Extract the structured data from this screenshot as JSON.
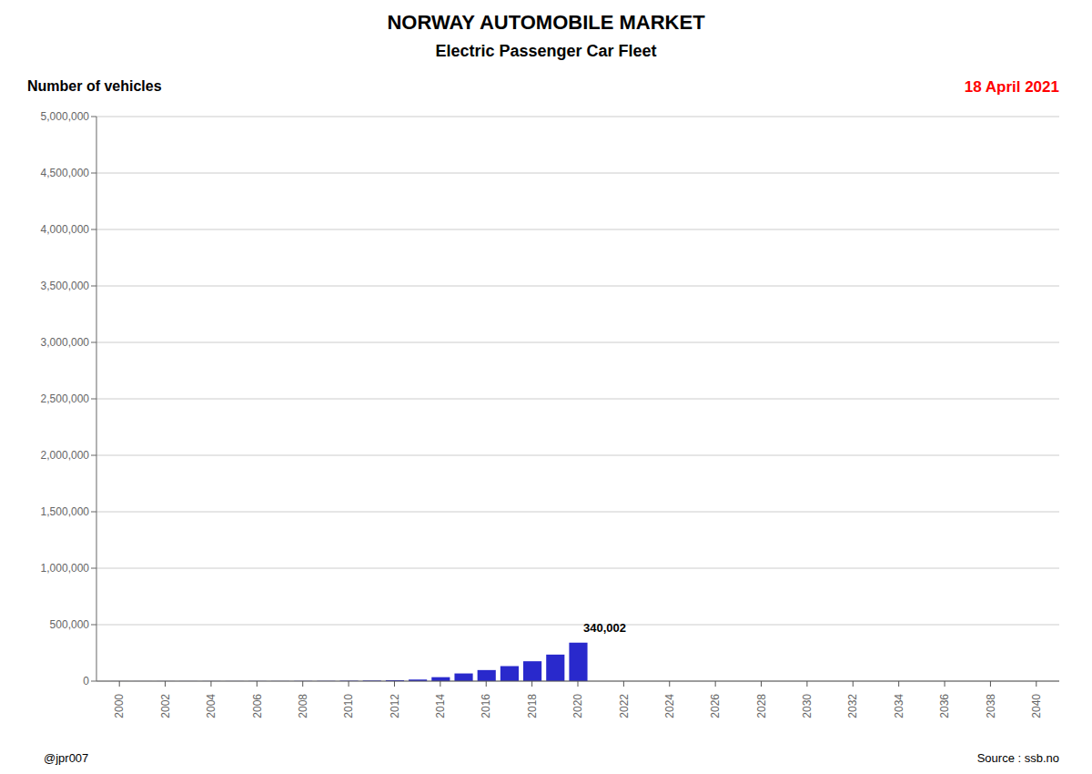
{
  "chart_data": {
    "type": "bar",
    "title": "NORWAY AUTOMOBILE MARKET",
    "subtitle": "Electric Passenger Car Fleet",
    "ylabel": "Number of vehicles",
    "date_label": {
      "text": "18 April 2021",
      "color": "red"
    },
    "footer_left": "@jpr007",
    "footer_right": "Source : ssb.no",
    "color": "#2929cc",
    "grid": true,
    "x": [
      2000,
      2001,
      2002,
      2003,
      2004,
      2005,
      2006,
      2007,
      2008,
      2009,
      2010,
      2011,
      2012,
      2013,
      2014,
      2015,
      2016,
      2017,
      2018,
      2019,
      2020
    ],
    "values": [
      300,
      400,
      500,
      600,
      700,
      800,
      900,
      1000,
      1500,
      2000,
      3500,
      5000,
      8000,
      14000,
      35000,
      68000,
      98000,
      133000,
      176000,
      235000,
      340002
    ],
    "xlim": [
      1999,
      2041
    ],
    "xticks": [
      2000,
      2002,
      2004,
      2006,
      2008,
      2010,
      2012,
      2014,
      2016,
      2018,
      2020,
      2022,
      2024,
      2026,
      2028,
      2030,
      2032,
      2034,
      2036,
      2038,
      2040
    ],
    "ylim": [
      0,
      5000000
    ],
    "yticks": [
      0,
      {
        "value": 500000,
        "label": "500,000"
      },
      {
        "value": 1000000,
        "label": "1,000,000"
      },
      {
        "value": 1500000,
        "label": "1,500,000"
      },
      {
        "value": 2000000,
        "label": "2,000,000"
      },
      {
        "value": 2500000,
        "label": "2,500,000"
      },
      {
        "value": 3000000,
        "label": "3,000,000"
      },
      {
        "value": 3500000,
        "label": "3,500,000"
      },
      {
        "value": 4000000,
        "label": "4,000,000"
      },
      {
        "value": 4500000,
        "label": "4,500,000"
      },
      {
        "value": 5000000,
        "label": "5,000,000"
      }
    ],
    "annotations": [
      {
        "text": "340,002",
        "x": 2020,
        "y": 340002
      }
    ]
  }
}
